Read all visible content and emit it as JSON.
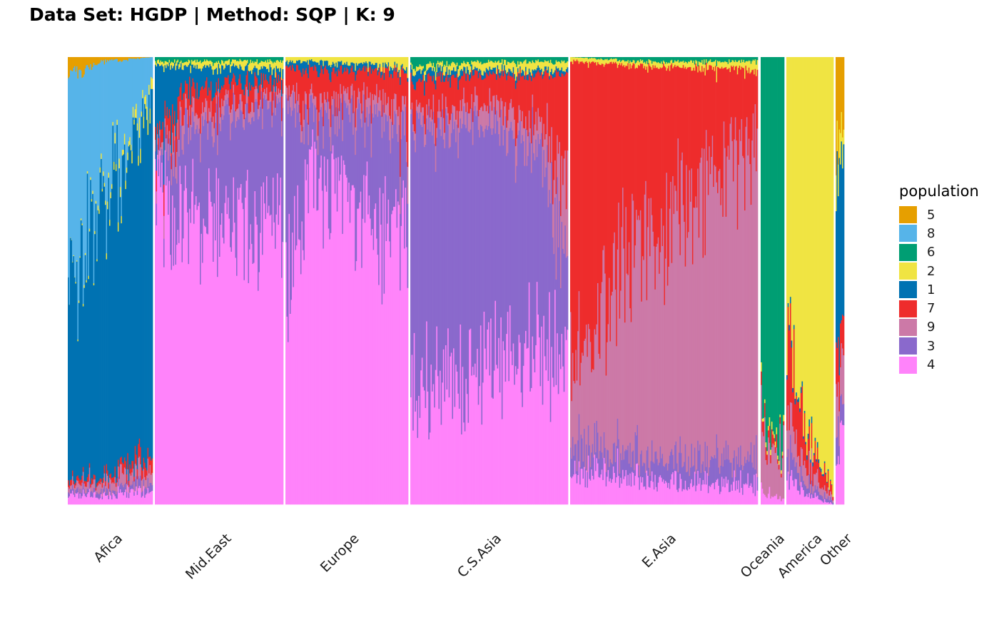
{
  "chart_data": {
    "type": "stacked-bar",
    "title": "Data Set: HGDP | Method: SQP | K: 9",
    "xlabel": "",
    "ylabel": "",
    "ylim": [
      0,
      1
    ],
    "legend": {
      "title": "population",
      "placement": "right",
      "entries": [
        {
          "label": "5",
          "color": "#E69F00"
        },
        {
          "label": "8",
          "color": "#56B4E9"
        },
        {
          "label": "6",
          "color": "#009E73"
        },
        {
          "label": "2",
          "color": "#F0E442"
        },
        {
          "label": "1",
          "color": "#0072B2"
        },
        {
          "label": "7",
          "color": "#EE2C2C"
        },
        {
          "label": "9",
          "color": "#CC79A7"
        },
        {
          "label": "3",
          "color": "#8A69CC"
        },
        {
          "label": "4",
          "color": "#FF83FA"
        }
      ]
    },
    "stack_order_top_to_bottom": [
      "5",
      "8",
      "6",
      "2",
      "1",
      "7",
      "9",
      "3",
      "4"
    ],
    "facets": [
      {
        "label": "Afica",
        "n": 80,
        "avg_proportions": {
          "5": 0.02,
          "8": 0.28,
          "6": 0.005,
          "2": 0.01,
          "1": 0.62,
          "7": 0.01,
          "9": 0.02,
          "3": 0.01,
          "4": 0.025
        },
        "profile": [
          [
            0,
            {
              "5": 0.04,
              "8": 0.52,
              "2": 0,
              "1": 0.39,
              "7": 0.01,
              "9": 0.01,
              "3": 0.01,
              "4": 0.02
            }
          ],
          [
            0.4,
            {
              "5": 0.01,
              "8": 0.3,
              "2": 0.01,
              "1": 0.62,
              "7": 0.01,
              "9": 0.02,
              "3": 0.01,
              "4": 0.02
            }
          ],
          [
            1,
            {
              "5": 0,
              "8": 0.08,
              "2": 0.03,
              "1": 0.78,
              "7": 0.03,
              "9": 0.03,
              "3": 0.02,
              "4": 0.03
            }
          ]
        ]
      },
      {
        "label": "Mid.East",
        "n": 120,
        "avg_proportions": {
          "1": 0.05,
          "6": 0.01,
          "2": 0.01,
          "7": 0.04,
          "9": 0.03,
          "3": 0.2,
          "4": 0.66
        },
        "profile": [
          [
            0,
            {
              "6": 0.01,
              "2": 0.01,
              "1": 0.2,
              "7": 0.03,
              "9": 0.02,
              "3": 0.03,
              "4": 0.7
            }
          ],
          [
            0.2,
            {
              "6": 0.01,
              "2": 0.01,
              "1": 0.06,
              "7": 0.06,
              "9": 0.04,
              "3": 0.18,
              "4": 0.64
            }
          ],
          [
            1,
            {
              "6": 0.01,
              "2": 0.02,
              "1": 0.02,
              "7": 0.03,
              "9": 0.02,
              "3": 0.26,
              "4": 0.64
            }
          ]
        ]
      },
      {
        "label": "Europe",
        "n": 115,
        "avg_proportions": {
          "2": 0.02,
          "1": 0.01,
          "7": 0.06,
          "9": 0.03,
          "3": 0.23,
          "4": 0.65
        },
        "profile": [
          [
            0,
            {
              "2": 0.01,
              "1": 0.01,
              "7": 0.05,
              "9": 0.03,
              "3": 0.42,
              "4": 0.48
            }
          ],
          [
            0.18,
            {
              "2": 0.01,
              "1": 0.02,
              "7": 0.07,
              "9": 0.03,
              "3": 0.1,
              "4": 0.77
            }
          ],
          [
            0.8,
            {
              "2": 0.02,
              "1": 0.01,
              "7": 0.06,
              "9": 0.04,
              "3": 0.25,
              "4": 0.62
            }
          ],
          [
            1,
            {
              "2": 0.03,
              "1": 0.01,
              "7": 0.12,
              "9": 0.05,
              "3": 0.18,
              "4": 0.61
            }
          ]
        ]
      },
      {
        "label": "C.S.Asia",
        "n": 140,
        "avg_proportions": {
          "6": 0.01,
          "2": 0.02,
          "1": 0.01,
          "7": 0.09,
          "9": 0.05,
          "3": 0.5,
          "4": 0.32
        },
        "profile": [
          [
            0,
            {
              "6": 0.02,
              "2": 0.01,
              "1": 0.02,
              "7": 0.08,
              "9": 0.02,
              "3": 0.6,
              "4": 0.25
            }
          ],
          [
            0.5,
            {
              "6": 0.01,
              "2": 0.02,
              "1": 0.01,
              "7": 0.06,
              "9": 0.05,
              "3": 0.55,
              "4": 0.3
            }
          ],
          [
            0.83,
            {
              "6": 0.01,
              "2": 0.02,
              "1": 0.01,
              "7": 0.1,
              "9": 0.05,
              "3": 0.45,
              "4": 0.36
            }
          ],
          [
            1,
            {
              "6": 0.01,
              "2": 0.02,
              "1": 0.01,
              "7": 0.27,
              "9": 0.18,
              "3": 0.2,
              "4": 0.31
            }
          ]
        ]
      },
      {
        "label": "E.Asia",
        "n": 180,
        "avg_proportions": {
          "2": 0.01,
          "6": 0.01,
          "7": 0.33,
          "9": 0.55,
          "3": 0.05,
          "4": 0.05
        },
        "profile": [
          [
            0,
            {
              "2": 0.01,
              "6": 0,
              "7": 0.65,
              "9": 0.2,
              "3": 0.06,
              "4": 0.08
            }
          ],
          [
            0.4,
            {
              "2": 0.01,
              "6": 0.01,
              "7": 0.38,
              "9": 0.5,
              "3": 0.05,
              "4": 0.05
            }
          ],
          [
            1,
            {
              "2": 0.02,
              "6": 0.01,
              "7": 0.15,
              "9": 0.72,
              "3": 0.06,
              "4": 0.04
            }
          ]
        ]
      },
      {
        "label": "Oceania",
        "n": 20,
        "avg_proportions": {
          "6": 0.84,
          "2": 0.01,
          "7": 0.02,
          "9": 0.11,
          "4": 0.02
        },
        "profile": [
          [
            0,
            {
              "6": 0.8,
              "2": 0.01,
              "7": 0.03,
              "9": 0.13,
              "4": 0.03
            }
          ],
          [
            1,
            {
              "6": 0.86,
              "2": 0.01,
              "7": 0.01,
              "9": 0.11,
              "4": 0.01
            }
          ]
        ]
      },
      {
        "label": "America",
        "n": 40,
        "avg_proportions": {
          "2": 0.84,
          "1": 0.01,
          "7": 0.07,
          "9": 0.04,
          "3": 0.02,
          "4": 0.02
        },
        "profile": [
          [
            0,
            {
              "2": 0.62,
              "1": 0.01,
              "7": 0.18,
              "9": 0.08,
              "3": 0.05,
              "4": 0.06
            }
          ],
          [
            0.5,
            {
              "2": 0.85,
              "1": 0.01,
              "7": 0.06,
              "9": 0.04,
              "3": 0.02,
              "4": 0.02
            }
          ],
          [
            1,
            {
              "2": 0.98,
              "1": 0,
              "7": 0.01,
              "9": 0.005,
              "3": 0.005,
              "4": 0
            }
          ]
        ]
      },
      {
        "label": "Other",
        "n": 8,
        "avg_proportions": {
          "2": 0.06,
          "1": 0.35,
          "5": 0.2,
          "7": 0.08,
          "9": 0.1,
          "3": 0.06,
          "4": 0.15
        },
        "profile": [
          [
            0,
            {
              "5": 0.2,
              "2": 0.06,
              "1": 0.35,
              "7": 0.08,
              "9": 0.1,
              "3": 0.06,
              "4": 0.15
            }
          ],
          [
            1,
            {
              "5": 0.2,
              "2": 0.06,
              "1": 0.35,
              "7": 0.08,
              "9": 0.1,
              "3": 0.06,
              "4": 0.15
            }
          ]
        ]
      }
    ]
  }
}
